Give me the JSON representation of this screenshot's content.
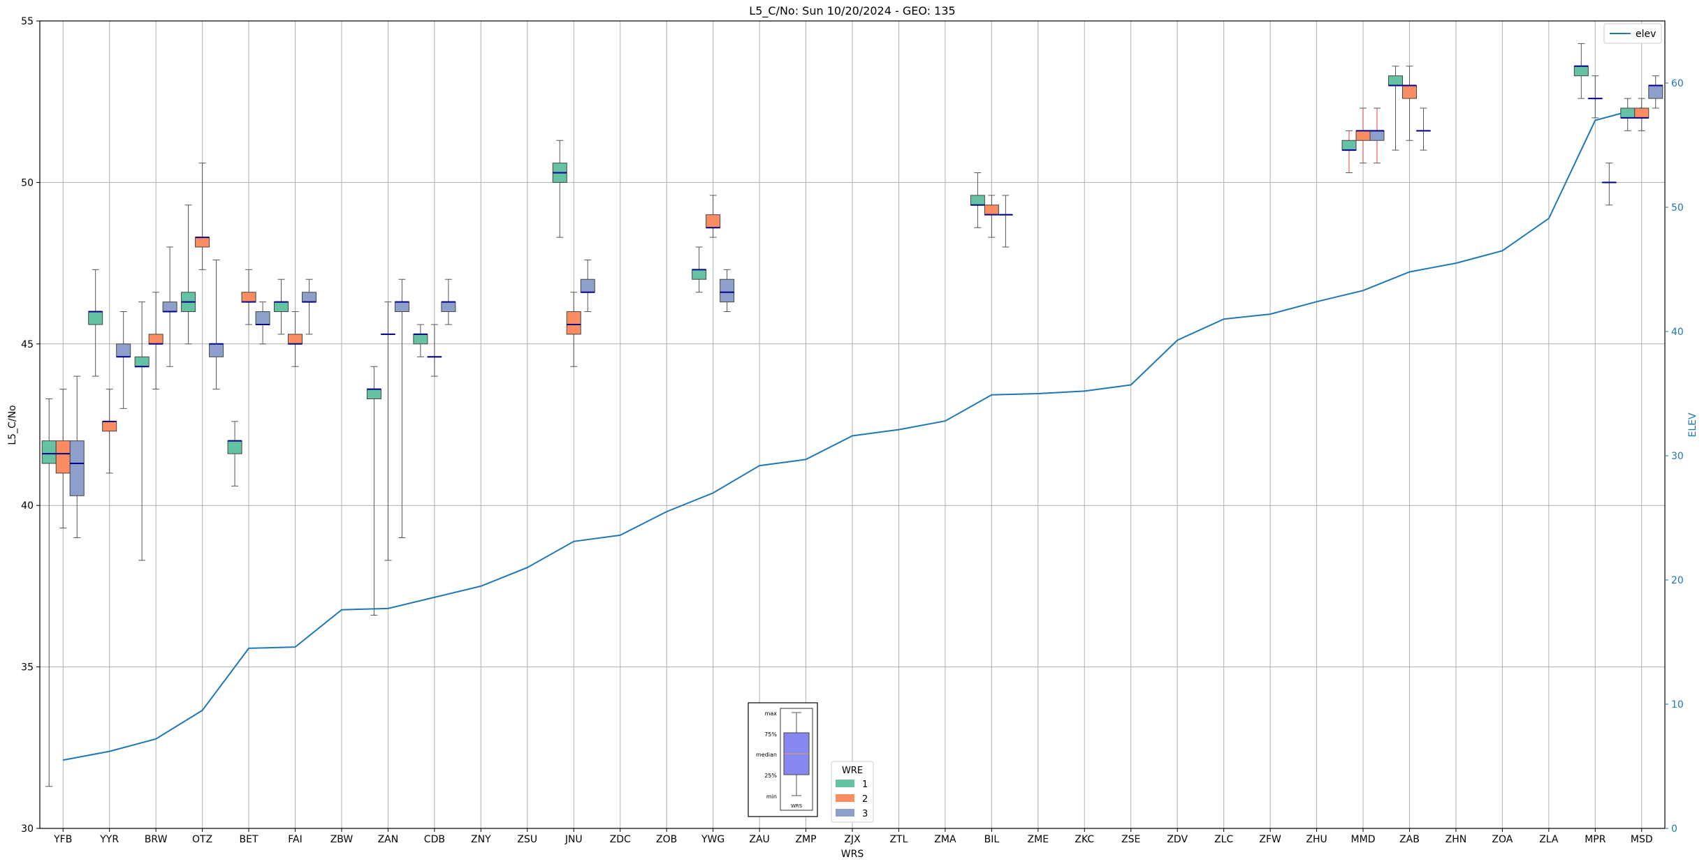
{
  "chart_data": {
    "type": "box",
    "title": "L5_C/No: Sun 10/20/2024 - GEO: 135",
    "xlabel": "WRS",
    "ylabel": "L5_C/No",
    "y2label": "ELEV",
    "ylim": [
      30,
      55
    ],
    "y2lim": [
      0,
      65
    ],
    "yticks": [
      "30",
      "35",
      "40",
      "45",
      "50",
      "55"
    ],
    "y2ticks": [
      "0",
      "10",
      "20",
      "30",
      "40",
      "50",
      "60"
    ],
    "grid": true,
    "categories": [
      "YFB",
      "YYR",
      "BRW",
      "OTZ",
      "BET",
      "FAI",
      "ZBW",
      "ZAN",
      "CDB",
      "ZNY",
      "ZSU",
      "JNU",
      "ZDC",
      "ZOB",
      "YWG",
      "ZAU",
      "ZMP",
      "ZJX",
      "ZTL",
      "ZMA",
      "BIL",
      "ZME",
      "ZKC",
      "ZSE",
      "ZDV",
      "ZLC",
      "ZFW",
      "ZHU",
      "MMD",
      "ZAB",
      "ZHN",
      "ZOA",
      "ZLA",
      "MPR",
      "MSD"
    ],
    "series_colors": {
      "1": "#66c2a5",
      "2": "#fc8d62",
      "3": "#8da0cb"
    },
    "legend_title": "WRE",
    "legend_labels": [
      "1",
      "2",
      "3"
    ],
    "boxes": [
      {
        "cat": "YFB",
        "wre": "1",
        "min": 31.3,
        "q1": 41.3,
        "med": 41.6,
        "q3": 42.0,
        "max": 43.3
      },
      {
        "cat": "YFB",
        "wre": "2",
        "min": 39.3,
        "q1": 41.0,
        "med": 41.6,
        "q3": 42.0,
        "max": 43.6
      },
      {
        "cat": "YFB",
        "wre": "3",
        "min": 39.0,
        "q1": 40.3,
        "med": 41.3,
        "q3": 42.0,
        "max": 44.0
      },
      {
        "cat": "YYR",
        "wre": "1",
        "min": 44.0,
        "q1": 45.6,
        "med": 46.0,
        "q3": 46.0,
        "max": 47.3
      },
      {
        "cat": "YYR",
        "wre": "2",
        "min": 41.0,
        "q1": 42.3,
        "med": 42.6,
        "q3": 42.6,
        "max": 43.6
      },
      {
        "cat": "YYR",
        "wre": "3",
        "min": 43.0,
        "q1": 44.6,
        "med": 44.6,
        "q3": 45.0,
        "max": 46.0
      },
      {
        "cat": "BRW",
        "wre": "1",
        "min": 38.3,
        "q1": 44.3,
        "med": 44.3,
        "q3": 44.6,
        "max": 46.3
      },
      {
        "cat": "BRW",
        "wre": "2",
        "min": 43.6,
        "q1": 45.0,
        "med": 45.0,
        "q3": 45.3,
        "max": 46.6
      },
      {
        "cat": "BRW",
        "wre": "3",
        "min": 44.3,
        "q1": 46.0,
        "med": 46.0,
        "q3": 46.3,
        "max": 48.0
      },
      {
        "cat": "OTZ",
        "wre": "1",
        "min": 45.0,
        "q1": 46.0,
        "med": 46.3,
        "q3": 46.6,
        "max": 49.3
      },
      {
        "cat": "OTZ",
        "wre": "2",
        "min": 47.3,
        "q1": 48.0,
        "med": 48.3,
        "q3": 48.3,
        "max": 50.6
      },
      {
        "cat": "OTZ",
        "wre": "3",
        "min": 43.6,
        "q1": 44.6,
        "med": 45.0,
        "q3": 45.0,
        "max": 47.6
      },
      {
        "cat": "BET",
        "wre": "1",
        "min": 40.6,
        "q1": 41.6,
        "med": 42.0,
        "q3": 42.0,
        "max": 42.6
      },
      {
        "cat": "BET",
        "wre": "2",
        "min": 45.6,
        "q1": 46.3,
        "med": 46.3,
        "q3": 46.6,
        "max": 47.3
      },
      {
        "cat": "BET",
        "wre": "3",
        "min": 45.0,
        "q1": 45.6,
        "med": 45.6,
        "q3": 46.0,
        "max": 46.3
      },
      {
        "cat": "FAI",
        "wre": "1",
        "min": 45.3,
        "q1": 46.0,
        "med": 46.3,
        "q3": 46.3,
        "max": 47.0
      },
      {
        "cat": "FAI",
        "wre": "2",
        "min": 44.3,
        "q1": 45.0,
        "med": 45.0,
        "q3": 45.3,
        "max": 46.0
      },
      {
        "cat": "FAI",
        "wre": "3",
        "min": 45.3,
        "q1": 46.3,
        "med": 46.3,
        "q3": 46.6,
        "max": 47.0
      },
      {
        "cat": "ZAN",
        "wre": "1",
        "min": 36.6,
        "q1": 43.3,
        "med": 43.6,
        "q3": 43.6,
        "max": 44.3
      },
      {
        "cat": "ZAN",
        "wre": "2",
        "min": 38.3,
        "q1": 45.3,
        "med": 45.3,
        "q3": 45.3,
        "max": 46.3
      },
      {
        "cat": "ZAN",
        "wre": "3",
        "min": 39.0,
        "q1": 46.0,
        "med": 46.3,
        "q3": 46.3,
        "max": 47.0
      },
      {
        "cat": "CDB",
        "wre": "1",
        "min": 44.6,
        "q1": 45.0,
        "med": 45.3,
        "q3": 45.3,
        "max": 45.6
      },
      {
        "cat": "CDB",
        "wre": "2",
        "min": 44.0,
        "q1": 44.6,
        "med": 44.6,
        "q3": 44.6,
        "max": 45.6
      },
      {
        "cat": "CDB",
        "wre": "3",
        "min": 45.6,
        "q1": 46.0,
        "med": 46.3,
        "q3": 46.3,
        "max": 47.0
      },
      {
        "cat": "JNU",
        "wre": "1",
        "min": 48.3,
        "q1": 50.0,
        "med": 50.3,
        "q3": 50.6,
        "max": 51.3
      },
      {
        "cat": "JNU",
        "wre": "2",
        "min": 44.3,
        "q1": 45.3,
        "med": 45.6,
        "q3": 46.0,
        "max": 46.6
      },
      {
        "cat": "JNU",
        "wre": "3",
        "min": 46.0,
        "q1": 46.6,
        "med": 46.6,
        "q3": 47.0,
        "max": 47.6
      },
      {
        "cat": "YWG",
        "wre": "1",
        "min": 46.6,
        "q1": 47.0,
        "med": 47.3,
        "q3": 47.3,
        "max": 48.0
      },
      {
        "cat": "YWG",
        "wre": "2",
        "min": 48.3,
        "q1": 48.6,
        "med": 48.6,
        "q3": 49.0,
        "max": 49.6
      },
      {
        "cat": "YWG",
        "wre": "3",
        "min": 46.0,
        "q1": 46.3,
        "med": 46.6,
        "q3": 47.0,
        "max": 47.3
      },
      {
        "cat": "BIL",
        "wre": "1",
        "min": 48.6,
        "q1": 49.3,
        "med": 49.3,
        "q3": 49.6,
        "max": 50.3
      },
      {
        "cat": "BIL",
        "wre": "2",
        "min": 48.3,
        "q1": 49.0,
        "med": 49.0,
        "q3": 49.3,
        "max": 49.6
      },
      {
        "cat": "BIL",
        "wre": "3",
        "min": 48.0,
        "q1": 49.0,
        "med": 49.0,
        "q3": 49.0,
        "max": 49.6
      },
      {
        "cat": "MMD",
        "wre": "1",
        "min": 50.3,
        "q1": 51.0,
        "med": 51.0,
        "q3": 51.3,
        "max": 51.6
      },
      {
        "cat": "MMD",
        "wre": "2",
        "min": 50.6,
        "q1": 51.3,
        "med": 51.6,
        "q3": 51.6,
        "max": 52.3
      },
      {
        "cat": "MMD",
        "wre": "3",
        "min": 50.6,
        "q1": 51.3,
        "med": 51.6,
        "q3": 51.6,
        "max": 52.3
      },
      {
        "cat": "ZAB",
        "wre": "1",
        "min": 51.0,
        "q1": 53.0,
        "med": 53.0,
        "q3": 53.3,
        "max": 53.6
      },
      {
        "cat": "ZAB",
        "wre": "2",
        "min": 51.3,
        "q1": 52.6,
        "med": 53.0,
        "q3": 53.0,
        "max": 53.6
      },
      {
        "cat": "ZAB",
        "wre": "3",
        "min": 51.0,
        "q1": 51.6,
        "med": 51.6,
        "q3": 51.6,
        "max": 52.3
      },
      {
        "cat": "MPR",
        "wre": "1",
        "min": 52.6,
        "q1": 53.3,
        "med": 53.6,
        "q3": 53.6,
        "max": 54.3
      },
      {
        "cat": "MPR",
        "wre": "2",
        "min": 52.0,
        "q1": 52.6,
        "med": 52.6,
        "q3": 52.6,
        "max": 53.3
      },
      {
        "cat": "MPR",
        "wre": "3",
        "min": 49.3,
        "q1": 50.0,
        "med": 50.0,
        "q3": 50.0,
        "max": 50.6
      },
      {
        "cat": "MSD",
        "wre": "1",
        "min": 51.6,
        "q1": 52.0,
        "med": 52.0,
        "q3": 52.3,
        "max": 52.6
      },
      {
        "cat": "MSD",
        "wre": "2",
        "min": 51.6,
        "q1": 52.0,
        "med": 52.0,
        "q3": 52.3,
        "max": 52.6
      },
      {
        "cat": "MSD",
        "wre": "3",
        "min": 52.3,
        "q1": 52.6,
        "med": 53.0,
        "q3": 53.0,
        "max": 53.3
      }
    ],
    "elev_line": {
      "name": "elev",
      "color": "#1f77b4",
      "values": [
        5.5,
        6.2,
        7.2,
        9.5,
        14.5,
        14.6,
        17.6,
        17.7,
        18.6,
        19.5,
        21.0,
        23.1,
        23.6,
        25.5,
        27.0,
        29.2,
        29.7,
        31.6,
        32.1,
        32.8,
        34.9,
        35.0,
        35.2,
        35.7,
        39.3,
        41.0,
        41.4,
        42.4,
        43.3,
        44.8,
        45.5,
        46.5,
        49.1,
        57.0,
        58.0
      ]
    },
    "legend_line_label": "elev",
    "key_inset": {
      "labels": [
        "max",
        "75%",
        "median",
        "25%",
        "min"
      ],
      "xlabel": "WRS"
    }
  }
}
